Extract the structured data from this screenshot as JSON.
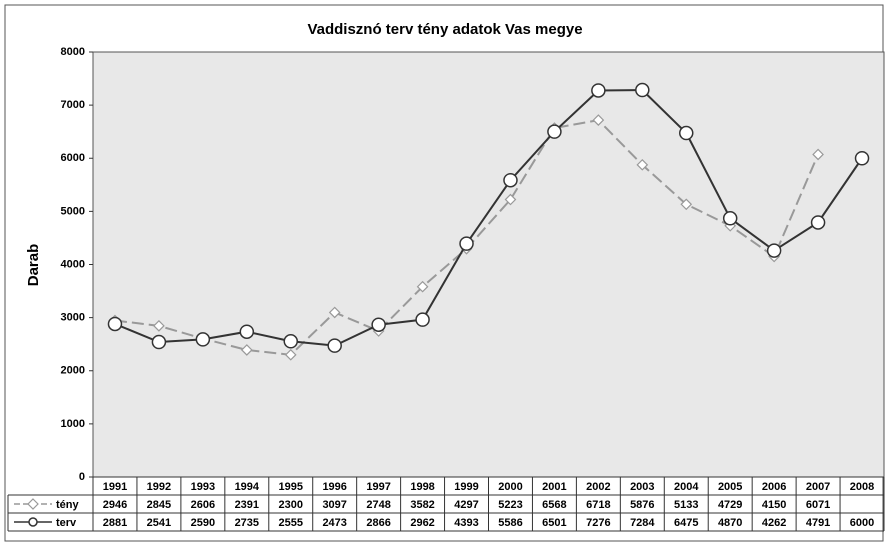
{
  "chart_data": {
    "type": "line",
    "title": "Vaddisznó terv tény adatok Vas megye",
    "y_label": "Darab",
    "categories": [
      "1991",
      "1992",
      "1993",
      "1994",
      "1995",
      "1996",
      "1997",
      "1998",
      "1999",
      "2000",
      "2001",
      "2002",
      "2003",
      "2004",
      "2005",
      "2006",
      "2007",
      "2008"
    ],
    "series": [
      {
        "name": "tény",
        "color": "#999999",
        "dash": true,
        "marker": "diamond",
        "values": [
          2946,
          2845,
          2606,
          2391,
          2300,
          3097,
          2748,
          3582,
          4297,
          5223,
          6568,
          6718,
          5876,
          5133,
          4729,
          4150,
          6071,
          null
        ]
      },
      {
        "name": "terv",
        "color": "#333333",
        "dash": false,
        "marker": "circle",
        "values": [
          2881,
          2541,
          2590,
          2735,
          2555,
          2473,
          2866,
          2962,
          4393,
          5586,
          6501,
          7276,
          7284,
          6475,
          4870,
          4262,
          4791,
          6000
        ]
      }
    ],
    "ylim": [
      0,
      8000
    ],
    "yticks": [
      0,
      1000,
      2000,
      3000,
      4000,
      5000,
      6000,
      7000,
      8000
    ],
    "grid": false
  }
}
